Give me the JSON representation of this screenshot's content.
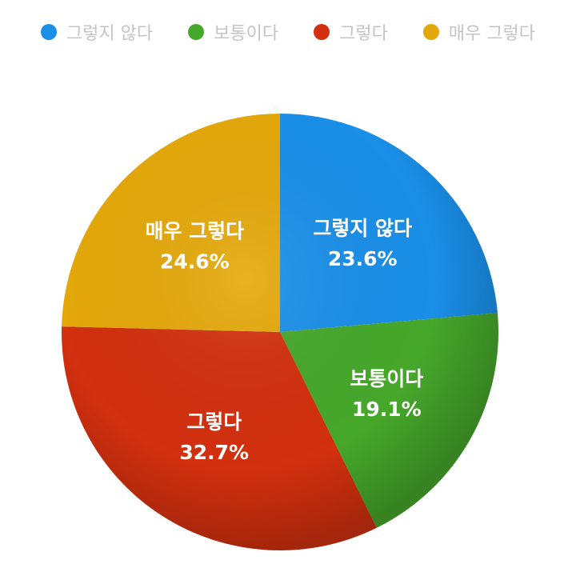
{
  "chart_data": {
    "type": "pie",
    "legend_position": "top",
    "start_angle_deg": 0,
    "direction": "clockwise",
    "slices": [
      {
        "label": "그렇지 않다",
        "value": 23.6,
        "value_label": "23.6%",
        "color": "#1a8fe8"
      },
      {
        "label": "보통이다",
        "value": 19.1,
        "value_label": "19.1%",
        "color": "#46a82b"
      },
      {
        "label": "그렇다",
        "value": 32.7,
        "value_label": "32.7%",
        "color": "#d2300f"
      },
      {
        "label": "매우 그렇다",
        "value": 24.6,
        "value_label": "24.6%",
        "color": "#e4a80a"
      }
    ]
  }
}
